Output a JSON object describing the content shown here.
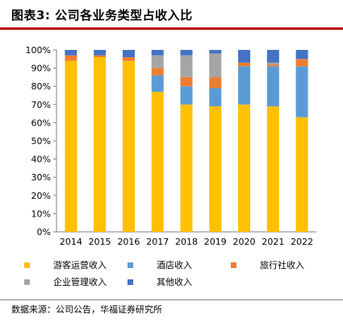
{
  "header": {
    "title": "图表3: 公司各业务类型占收入比"
  },
  "footer": {
    "source": "数据来源：公司公告，华福证券研究所"
  },
  "colors": {
    "title_rule": "#c00000",
    "tourism": "#ffc000",
    "hotel": "#5b9bd5",
    "travel_agency": "#ed7d31",
    "management": "#a5a5a5",
    "other": "#4472c4"
  },
  "chart_data": {
    "type": "bar",
    "stacked": true,
    "title": "图表3: 公司各业务类型占收入比",
    "categories": [
      "2014",
      "2015",
      "2016",
      "2017",
      "2018",
      "2019",
      "2020",
      "2021",
      "2022"
    ],
    "series": [
      {
        "name": "游客运营收入",
        "color": "#ffc000",
        "values": [
          94,
          96,
          94,
          77,
          70,
          69,
          70,
          69,
          63
        ]
      },
      {
        "name": "酒店收入",
        "color": "#5b9bd5",
        "values": [
          0,
          0,
          0,
          9,
          10,
          10,
          21,
          22,
          28
        ]
      },
      {
        "name": "旅行社收入",
        "color": "#ed7d31",
        "values": [
          3,
          1,
          2,
          4,
          5,
          6,
          2,
          1,
          4
        ]
      },
      {
        "name": "企业管理收入",
        "color": "#a5a5a5",
        "values": [
          0,
          0,
          0,
          7,
          12,
          13,
          0,
          1,
          0
        ]
      },
      {
        "name": "其他收入",
        "color": "#4472c4",
        "values": [
          3,
          3,
          4,
          3,
          3,
          2,
          7,
          7,
          5
        ]
      }
    ],
    "yticks": [
      "0%",
      "10%",
      "20%",
      "30%",
      "40%",
      "50%",
      "60%",
      "70%",
      "80%",
      "90%",
      "100%"
    ],
    "ylim": [
      0,
      100
    ],
    "xlabel": "",
    "ylabel": "",
    "grid": false,
    "legend": "bottom"
  }
}
